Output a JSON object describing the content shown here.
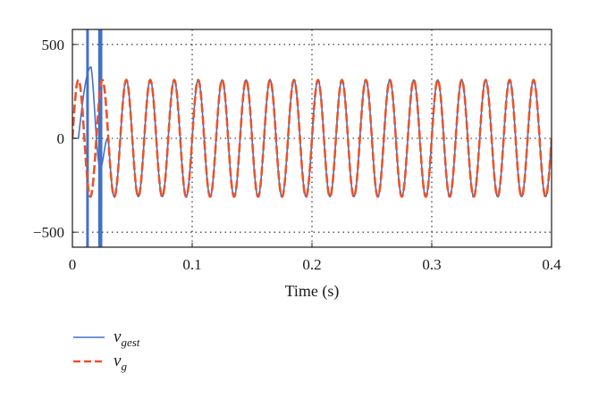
{
  "chart_data": {
    "type": "line",
    "title": "",
    "xlabel": "Time (s)",
    "ylabel": "",
    "xlim": [
      0,
      0.4
    ],
    "ylim": [
      -580,
      580
    ],
    "x_ticks": [
      0,
      0.1,
      0.2,
      0.3,
      0.4
    ],
    "x_tick_labels": [
      "0",
      "0.1",
      "0.2",
      "0.3",
      "0.4"
    ],
    "y_ticks": [
      500,
      0,
      -500
    ],
    "y_tick_labels": [
      "500",
      "0",
      "−500"
    ],
    "grid": true,
    "grid_style": "dotted",
    "legend_position": "below",
    "series": [
      {
        "name": "v_gest",
        "label_main": "v",
        "label_sub": "gest",
        "color": "#4472c4",
        "style": "solid",
        "amplitude": 311,
        "frequency_hz": 50,
        "startup_transient": {
          "spikes": [
            {
              "t_start": 0.0115,
              "t_end": 0.0135,
              "y_min": -580,
              "y_max": 580
            },
            {
              "t_start": 0.0215,
              "t_end": 0.025,
              "y_min": -580,
              "y_max": 580
            }
          ],
          "peak_after_first_spike": {
            "t": 0.0155,
            "y": 380
          }
        }
      },
      {
        "name": "v_g",
        "label_main": "v",
        "label_sub": "g",
        "color": "#e8542b",
        "style": "dashed",
        "amplitude": 311,
        "frequency_hz": 50
      }
    ]
  }
}
